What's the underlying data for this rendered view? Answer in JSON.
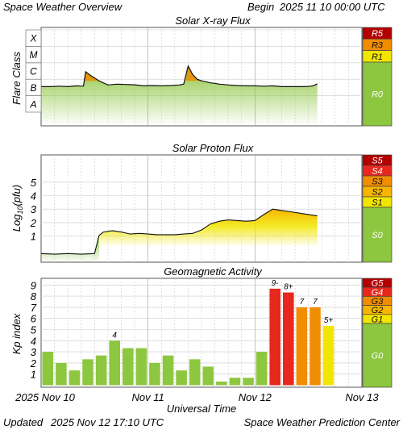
{
  "header": {
    "title": "Space Weather Overview",
    "begin_label": "Begin",
    "begin_value": "2025 11 10 00:00 UTC"
  },
  "footer": {
    "updated_label": "Updated",
    "updated_value": "2025 Nov 12 17:10 UTC",
    "center": "Space Weather Prediction Center"
  },
  "colors": {
    "green": "#8dc63f",
    "yellow": "#f2e600",
    "amber": "#f7b500",
    "orange": "#f28c00",
    "red": "#e8281d",
    "darkred": "#b30000",
    "grid": "#cccccc",
    "trace": "#111111"
  },
  "chart_data": [
    {
      "type": "line",
      "title": "Solar X-ray Flux",
      "ylabel": "Flare Class",
      "y_scale": "log",
      "flare_classes": [
        "A",
        "B",
        "C",
        "M",
        "X"
      ],
      "scale_levels": [
        {
          "label": "R5",
          "color": "#b30000"
        },
        {
          "label": "R3",
          "color": "#f28c00"
        },
        {
          "label": "R1",
          "color": "#f2e600"
        },
        {
          "label": "R0",
          "color": "#8dc63f"
        }
      ],
      "x_hours": [
        0,
        2,
        4,
        6,
        8,
        9.5,
        10,
        11,
        13,
        15,
        17,
        19,
        21,
        23,
        25,
        27,
        29,
        31,
        32,
        33,
        34,
        35,
        36,
        37,
        38,
        39,
        40,
        41,
        42,
        44,
        46,
        48,
        50,
        52,
        54,
        56,
        58,
        60,
        61,
        62
      ],
      "class_values": [
        2.55,
        2.55,
        2.58,
        2.55,
        2.6,
        2.58,
        3.45,
        3.25,
        2.9,
        2.65,
        2.7,
        2.68,
        2.66,
        2.6,
        2.62,
        2.6,
        2.62,
        2.65,
        2.7,
        3.8,
        3.3,
        3.0,
        2.9,
        2.85,
        2.78,
        2.75,
        2.7,
        2.68,
        2.65,
        2.62,
        2.6,
        2.6,
        2.58,
        2.6,
        2.55,
        2.55,
        2.55,
        2.56,
        2.6,
        2.72
      ]
    },
    {
      "type": "line",
      "title": "Solar Proton Flux",
      "ylabel": "Log10(pfu)",
      "yticks": [
        1,
        2,
        3,
        4,
        5
      ],
      "scale_levels": [
        {
          "label": "S5",
          "color": "#b30000"
        },
        {
          "label": "S4",
          "color": "#e8281d"
        },
        {
          "label": "S3",
          "color": "#f28c00"
        },
        {
          "label": "S2",
          "color": "#f7b500"
        },
        {
          "label": "S1",
          "color": "#f2e600"
        },
        {
          "label": "S0",
          "color": "#8dc63f"
        }
      ],
      "x_hours": [
        0,
        3,
        6,
        9,
        12,
        13,
        14,
        16,
        18,
        20,
        22,
        24,
        26,
        28,
        30,
        32,
        34,
        36,
        38,
        40,
        42,
        44,
        46,
        48,
        50,
        52,
        54,
        56,
        58,
        60,
        62
      ],
      "values": [
        -0.3,
        -0.35,
        -0.3,
        -0.35,
        -0.3,
        1.05,
        1.3,
        1.4,
        1.3,
        1.15,
        1.2,
        1.15,
        1.1,
        1.1,
        1.1,
        1.15,
        1.2,
        1.45,
        1.9,
        2.1,
        2.2,
        2.15,
        2.1,
        2.15,
        2.6,
        3.0,
        2.9,
        2.8,
        2.7,
        2.6,
        2.5
      ]
    },
    {
      "type": "bar",
      "title": "Geomagnetic Activity",
      "ylabel": "Kp index",
      "xlabel": "Universal Time",
      "ylim": [
        0,
        10
      ],
      "yticks": [
        1,
        2,
        3,
        4,
        5,
        6,
        7,
        8,
        9
      ],
      "xtick_labels": [
        "2025 Nov 10",
        "Nov 11",
        "Nov 12",
        "Nov 13"
      ],
      "scale_levels": [
        {
          "label": "G5",
          "color": "#b30000"
        },
        {
          "label": "G4",
          "color": "#e8281d"
        },
        {
          "label": "G3",
          "color": "#f28c00"
        },
        {
          "label": "G2",
          "color": "#f7b500"
        },
        {
          "label": "G1",
          "color": "#f2e600"
        },
        {
          "label": "G0",
          "color": "#8dc63f"
        }
      ],
      "values": [
        3.0,
        2.0,
        1.33,
        2.33,
        2.67,
        4.0,
        3.33,
        3.33,
        2.0,
        2.67,
        1.33,
        2.33,
        1.67,
        0.33,
        0.67,
        0.67,
        3.0,
        8.67,
        8.33,
        7.0,
        7.0,
        5.33
      ],
      "labels": [
        "",
        "",
        "",
        "",
        "",
        "4",
        "",
        "",
        "",
        "",
        "",
        "",
        "",
        "",
        "",
        "",
        "",
        "9-",
        "8+",
        "7",
        "7",
        "5+"
      ]
    }
  ]
}
